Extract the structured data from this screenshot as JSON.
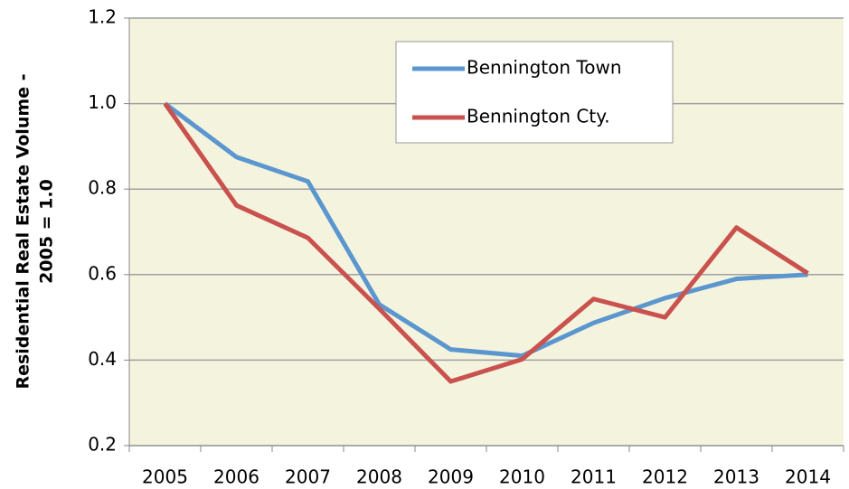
{
  "chart_data": {
    "type": "line",
    "ylabel": [
      "Residential Real Estate Volume -",
      "2005 = 1.0"
    ],
    "categories": [
      "2005",
      "2006",
      "2007",
      "2008",
      "2009",
      "2010",
      "2011",
      "2012",
      "2013",
      "2014"
    ],
    "series": [
      {
        "name": "Bennington Town",
        "color": "#5b96cf",
        "values": [
          1.0,
          0.875,
          0.818,
          0.53,
          0.425,
          0.41,
          0.487,
          0.545,
          0.59,
          0.6
        ]
      },
      {
        "name": "Bennington Cty.",
        "color": "#c9514e",
        "values": [
          1.0,
          0.762,
          0.686,
          0.52,
          0.35,
          0.402,
          0.543,
          0.5,
          0.71,
          0.603
        ]
      }
    ],
    "ylim": [
      0.2,
      1.2
    ],
    "yticks": [
      0.2,
      0.4,
      0.6,
      0.8,
      {
        "value": 1.0,
        "label": "1.0"
      },
      1.2
    ],
    "grid": true,
    "legend": "top-right"
  }
}
